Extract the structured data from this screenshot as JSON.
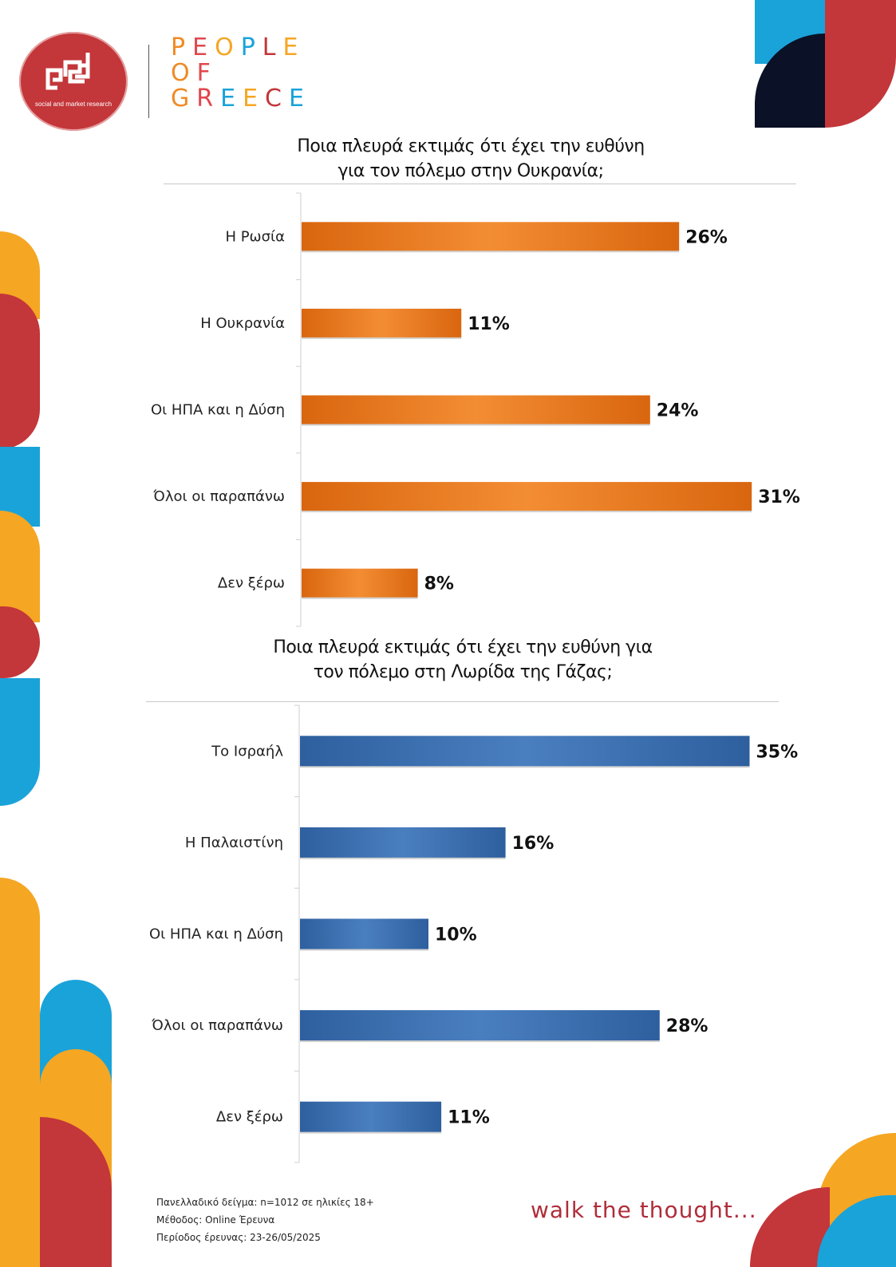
{
  "brand": {
    "logo_tagline": "social and market research",
    "title_lines": [
      "PEOPLE",
      "OF",
      "GREECE"
    ],
    "letter_colors": [
      "#f08a24",
      "#e0474c",
      "#f5a623",
      "#1aa3d9",
      "#c3363a",
      "#f5a623",
      "#f08a24",
      "#e0474c",
      "#f08a24",
      "#e0474c",
      "#1aa3d9",
      "#f5a623",
      "#c3363a",
      "#1aa3d9"
    ],
    "tagline": "walk the thought..."
  },
  "colors": {
    "orange": "#f08a24",
    "red": "#c3363a",
    "blue": "#1aa3d9",
    "navy": "#0b1126",
    "bar_ukraine": "#e8781c",
    "bar_gaza": "#3f72b0"
  },
  "footer": {
    "sample": "Πανελλαδικό δείγμα: n=1012 σε ηλικίες 18+",
    "method": "Μέθοδος: Online Έρευνα",
    "period": "Περίοδος έρευνας:  23-26/05/2025"
  },
  "chart_data": [
    {
      "type": "bar",
      "orientation": "horizontal",
      "title_lines": [
        "Ποια πλευρά εκτιμάς ότι έχει την ευθύνη",
        "για τον πόλεμο στην Ουκρανία;"
      ],
      "categories": [
        "Η Ρωσία",
        "Η Ουκρανία",
        "Οι ΗΠΑ και η Δύση",
        "Όλοι οι παραπάνω",
        "Δεν ξέρω"
      ],
      "values": [
        26,
        11,
        24,
        31,
        8
      ],
      "value_labels": [
        "26%",
        "11%",
        "24%",
        "31%",
        "8%"
      ],
      "unit": "%",
      "xlim": [
        0,
        35
      ],
      "color": "#e8781c"
    },
    {
      "type": "bar",
      "orientation": "horizontal",
      "title_lines": [
        "Ποια πλευρά εκτιμάς ότι έχει την ευθύνη για",
        "τον πόλεμο στη Λωρίδα της Γάζας;"
      ],
      "categories": [
        "Το Ισραήλ",
        "Η Παλαιστίνη",
        "Οι ΗΠΑ και η Δύση",
        "Όλοι οι παραπάνω",
        "Δεν ξέρω"
      ],
      "values": [
        35,
        16,
        10,
        28,
        11
      ],
      "value_labels": [
        "35%",
        "16%",
        "10%",
        "28%",
        "11%"
      ],
      "unit": "%",
      "xlim": [
        0,
        35
      ],
      "color": "#3f72b0"
    }
  ]
}
